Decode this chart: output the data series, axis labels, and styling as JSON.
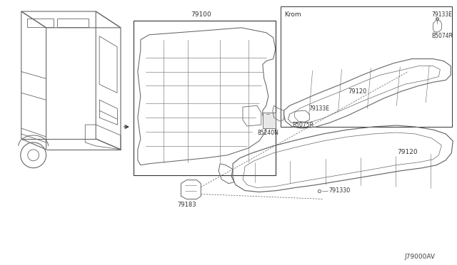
{
  "background_color": "#ffffff",
  "diagram_code": "J79000AV",
  "line_color": "#666666",
  "dark_color": "#333333",
  "labels": {
    "main_panel": "79100",
    "bracket": "79183",
    "clip_main": "85240N",
    "upper_panel": "79120",
    "clip_top_r": "79133E",
    "clip_top_b": "B5074R",
    "clip_bot_l": "79133E",
    "clip_bot_lb": "B5075R",
    "clip_bottom": "791330",
    "krom_label": "Krom"
  }
}
